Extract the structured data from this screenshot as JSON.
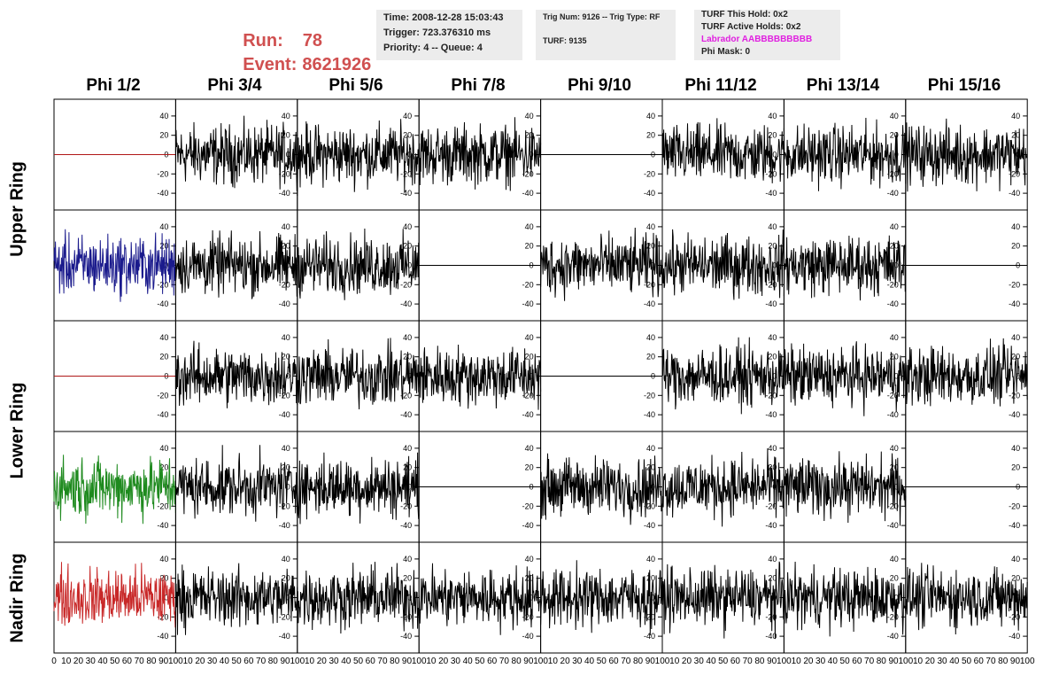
{
  "header": {
    "run_label": "Run:",
    "run_value": "78",
    "event_label": "Event:",
    "event_value": "8621926",
    "time": "Time: 2008-12-28 15:03:43",
    "trigger": "Trigger: 723.376310 ms",
    "priority": "Priority: 4 -- Queue: 4",
    "trig_num": "Trig Num: 9126 -- Trig Type: RF",
    "turf": "TURF: 9135",
    "turf_this_hold": "TURF This Hold: 0x2",
    "turf_active_holds": "TURF Active Holds: 0x2",
    "labrador": "Labrador AABBBBBBBBB",
    "phi_mask": "Phi Mask: 0"
  },
  "colors": {
    "run_text": "#d05050",
    "labrador_text": "#e020e0",
    "trace_default": "#000000",
    "trace_red": "#b01818",
    "trace_blue": "#1a1a8c",
    "trace_green": "#1e8a1e",
    "trace_nadir_red": "#c82828"
  },
  "chart_data": {
    "type": "line",
    "description_free": true,
    "columns": [
      "Phi 1/2",
      "Phi 3/4",
      "Phi 5/6",
      "Phi 7/8",
      "Phi 9/10",
      "Phi 11/12",
      "Phi 13/14",
      "Phi 15/16"
    ],
    "rows": [
      "Upper Ring",
      "Upper Ring",
      "Lower Ring",
      "Lower Ring",
      "Nadir Ring"
    ],
    "row_labels": [
      "Upper Ring",
      "Lower Ring",
      "Nadir Ring"
    ],
    "x_ticks_first": [
      "0",
      "10",
      "20",
      "30",
      "40",
      "50",
      "60",
      "70",
      "80",
      "90",
      "100"
    ],
    "x_ticks_other": [
      "10",
      "20",
      "30",
      "40",
      "50",
      "60",
      "70",
      "80",
      "90",
      "100"
    ],
    "xlim": [
      0,
      100
    ],
    "ylim": [
      -50,
      50
    ],
    "y_ticks": [
      "40",
      "20",
      "0",
      "-20",
      "-40"
    ],
    "panel_modes": [
      [
        "flat_red",
        "noise",
        "noise",
        "noise",
        "flat",
        "noise",
        "noise",
        "noise"
      ],
      [
        "noise_blue",
        "noise",
        "noise",
        "flat",
        "noise",
        "noise",
        "noise",
        "flat"
      ],
      [
        "flat_red",
        "noise",
        "noise",
        "noise",
        "flat",
        "noise",
        "noise",
        "noise"
      ],
      [
        "noise_green",
        "noise",
        "noise",
        "flat",
        "noise",
        "noise",
        "noise",
        "flat"
      ],
      [
        "noise_nadir",
        "noise",
        "noise",
        "noise",
        "noise",
        "noise",
        "noise",
        "noise"
      ]
    ],
    "amplitude_range": [
      -45,
      45
    ]
  }
}
